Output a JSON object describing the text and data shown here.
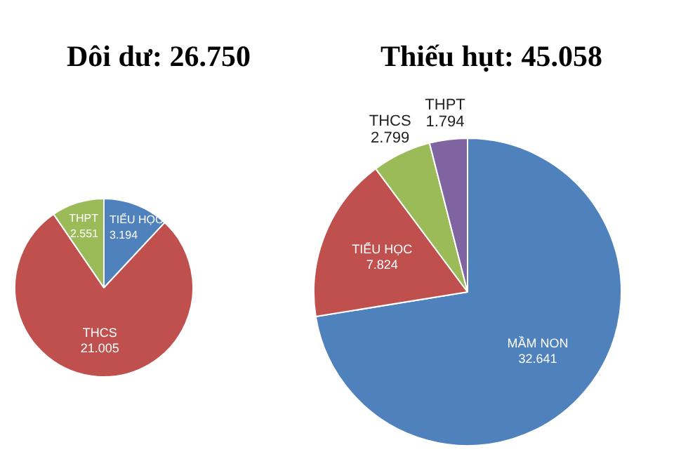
{
  "chart_data": [
    {
      "type": "pie",
      "title": "Dôi dư: 26.750",
      "categories": [
        "TIỂU HỌC",
        "THCS",
        "THPT"
      ],
      "values": [
        3194,
        21005,
        2551
      ],
      "value_labels": [
        "3.194",
        "21.005",
        "2.551"
      ],
      "colors": [
        "#4f81bd",
        "#c0504d",
        "#9bbb59"
      ]
    },
    {
      "type": "pie",
      "title": "Thiếu hụt: 45.058",
      "categories": [
        "MẦM NON",
        "TIỂU HỌC",
        "THCS",
        "THPT"
      ],
      "values": [
        32641,
        7824,
        2799,
        1794
      ],
      "value_labels": [
        "32.641",
        "7.824",
        "2.799",
        "1.794"
      ],
      "colors": [
        "#4f81bd",
        "#c0504d",
        "#9bbb59",
        "#8064a2"
      ]
    }
  ]
}
